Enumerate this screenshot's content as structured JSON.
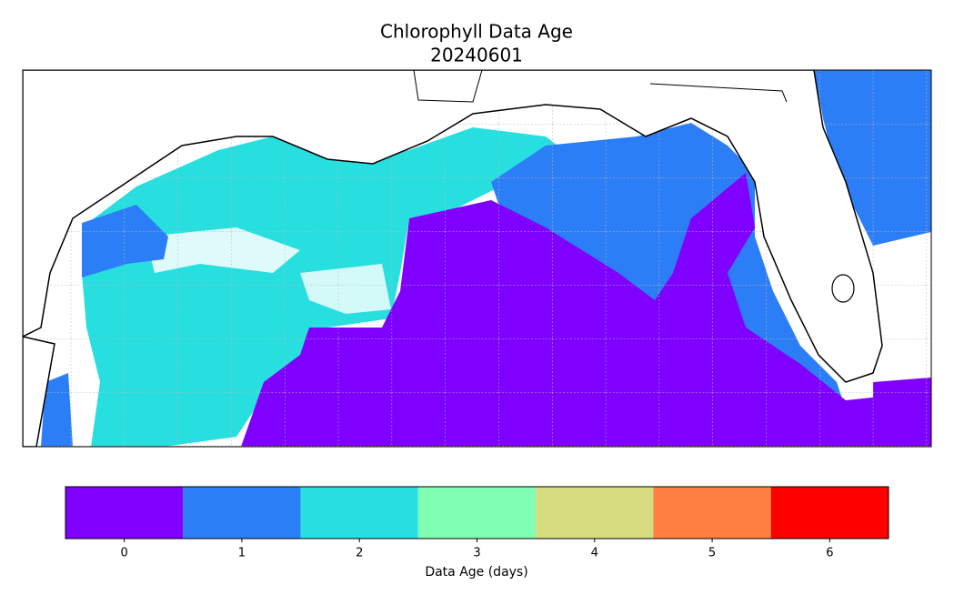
{
  "map": {
    "title": "Chlorophyll Data Age",
    "subtitle": "20240601"
  },
  "colorbar": {
    "label": "Data Age (days)",
    "ticks": [
      0,
      1,
      2,
      3,
      4,
      5,
      6
    ],
    "colors": [
      "#7f00ff",
      "#2c7ef7",
      "#28dfe0",
      "#80ffb4",
      "#d5dd80",
      "#ff7f41",
      "#ff0000"
    ]
  }
}
